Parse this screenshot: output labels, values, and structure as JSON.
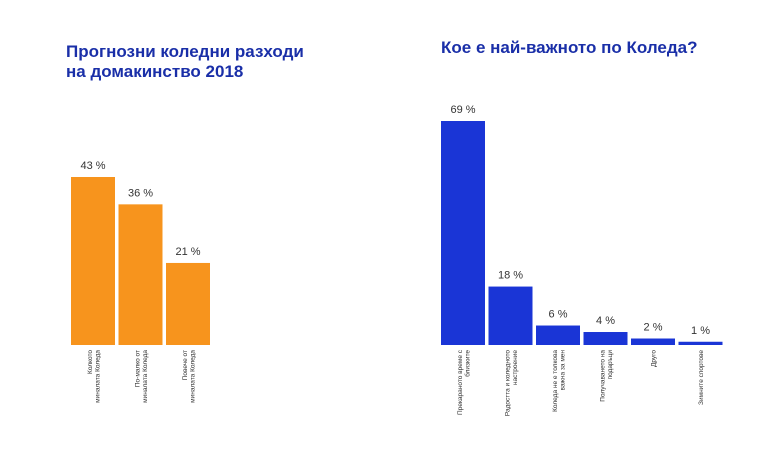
{
  "chart_data": [
    {
      "type": "bar",
      "title_lines": [
        "Прогнозни коледни разходи",
        "на домакинство 2018"
      ],
      "categories": [
        [
          "Колкото",
          "миналата Коледа"
        ],
        [
          "По-малко от",
          "миналата Коледа"
        ],
        [
          "Повече от",
          "миналата Коледа"
        ]
      ],
      "values": [
        43,
        36,
        21
      ],
      "value_labels": [
        "43 %",
        "36 %",
        "21 %"
      ],
      "color": "#f7941d",
      "ylim": [
        0,
        45
      ]
    },
    {
      "type": "bar",
      "title": "Кое е най-важното по Коледа?",
      "categories": [
        [
          "Прекараното време с",
          "близките"
        ],
        [
          "Радостта и коледното",
          "настроение"
        ],
        [
          "Коледа не е толкова",
          "важна за мен"
        ],
        [
          "Получаването на",
          "подаръци"
        ],
        [
          "Друго"
        ],
        [
          "Зимните спортове"
        ]
      ],
      "values": [
        69,
        18,
        6,
        4,
        2,
        1
      ],
      "value_labels": [
        "69 %",
        "18 %",
        "6 %",
        "4 %",
        "2 %",
        "1 %"
      ],
      "color": "#1a35d6",
      "ylim": [
        0,
        69
      ]
    }
  ]
}
